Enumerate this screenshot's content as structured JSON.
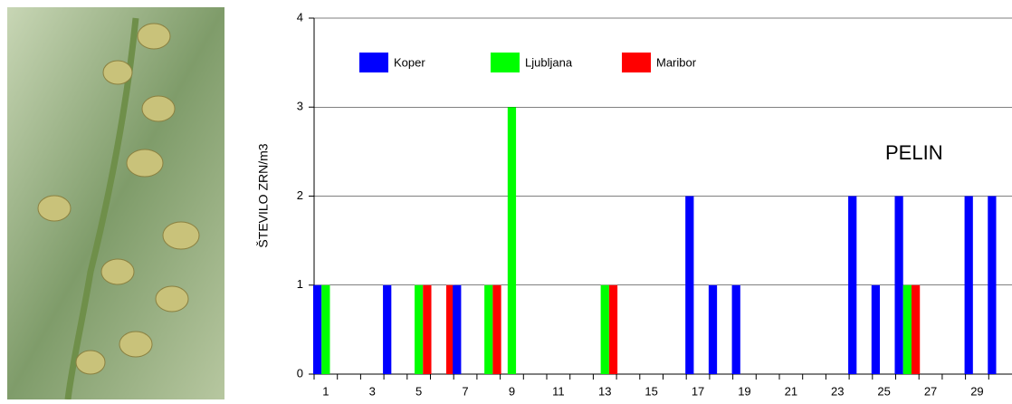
{
  "chart_data": {
    "type": "bar",
    "annotation": "PELIN",
    "y_label": "ŠTEVILO ZRN/m3",
    "categories": [
      "1",
      null,
      "3",
      null,
      "5",
      null,
      "7",
      null,
      "9",
      null,
      "11",
      null,
      "13",
      null,
      "15",
      null,
      "17",
      null,
      "19",
      null,
      "21",
      null,
      "23",
      null,
      "25",
      null,
      "27",
      null,
      "29",
      null
    ],
    "series": [
      {
        "name": "Koper",
        "color": "#0000ff",
        "values": [
          1,
          0,
          0,
          1,
          0,
          0,
          1,
          0,
          0,
          0,
          0,
          0,
          0,
          0,
          0,
          0,
          2,
          1,
          1,
          0,
          0,
          0,
          0,
          2,
          1,
          2,
          0,
          0,
          2,
          2
        ]
      },
      {
        "name": "Ljubljana",
        "color": "#00ff00",
        "values": [
          1,
          0,
          0,
          0,
          1,
          0,
          0,
          1,
          3,
          0,
          0,
          0,
          1,
          0,
          0,
          0,
          0,
          0,
          0,
          0,
          0,
          0,
          0,
          0,
          0,
          1,
          0,
          0,
          0,
          0
        ]
      },
      {
        "name": "Maribor",
        "color": "#ff0000",
        "values": [
          0,
          0,
          0,
          0,
          1,
          1,
          0,
          1,
          0,
          0,
          0,
          0,
          1,
          0,
          0,
          0,
          0,
          0,
          0,
          0,
          0,
          0,
          0,
          0,
          0,
          1,
          0,
          0,
          0,
          0
        ]
      }
    ],
    "ylim": [
      0,
      4
    ],
    "yticks": [
      0,
      1,
      2,
      3,
      4
    ],
    "grid": true
  }
}
